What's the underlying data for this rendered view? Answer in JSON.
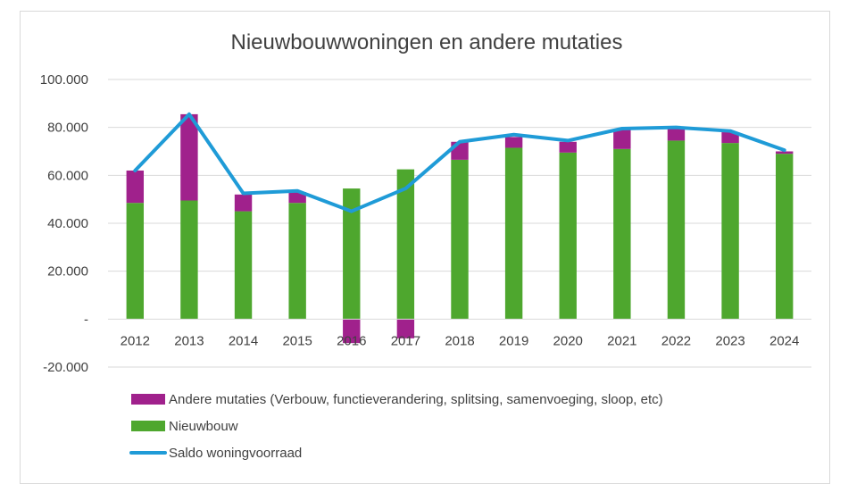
{
  "chart_data": {
    "type": "bar",
    "title": "Nieuwbouwwoningen en andere mutaties",
    "categories": [
      "2012",
      "2013",
      "2014",
      "2015",
      "2016",
      "2017",
      "2018",
      "2019",
      "2020",
      "2021",
      "2022",
      "2023",
      "2024"
    ],
    "series": [
      {
        "name": "Nieuwbouw",
        "kind": "bar",
        "color": "#4ea72e",
        "values": [
          48500,
          49500,
          45000,
          48500,
          54500,
          62500,
          66500,
          71500,
          69500,
          71000,
          74500,
          73500,
          69000
        ]
      },
      {
        "name": "Andere mutaties (Verbouw, functieverandering, splitsing, samenvoeging, sloop, etc)",
        "kind": "bar",
        "color": "#a0218c",
        "values": [
          13500,
          36000,
          7000,
          4500,
          -10000,
          -8000,
          7500,
          4500,
          4500,
          8000,
          5000,
          4500,
          1000
        ]
      },
      {
        "name": "Saldo woningvoorraad",
        "kind": "line",
        "color": "#1f9bd7",
        "values": [
          62000,
          85500,
          52500,
          53500,
          45000,
          54500,
          74000,
          77000,
          74500,
          79500,
          80000,
          78500,
          70500
        ]
      }
    ],
    "y_ticks": [
      "100.000",
      "80.000",
      "60.000",
      "40.000",
      "20.000",
      "-",
      "-20.000"
    ],
    "y_tick_values": [
      100000,
      80000,
      60000,
      40000,
      20000,
      0,
      -20000
    ],
    "ylim": [
      -20000,
      100000
    ],
    "grid": true,
    "legend_position": "bottom-left"
  }
}
